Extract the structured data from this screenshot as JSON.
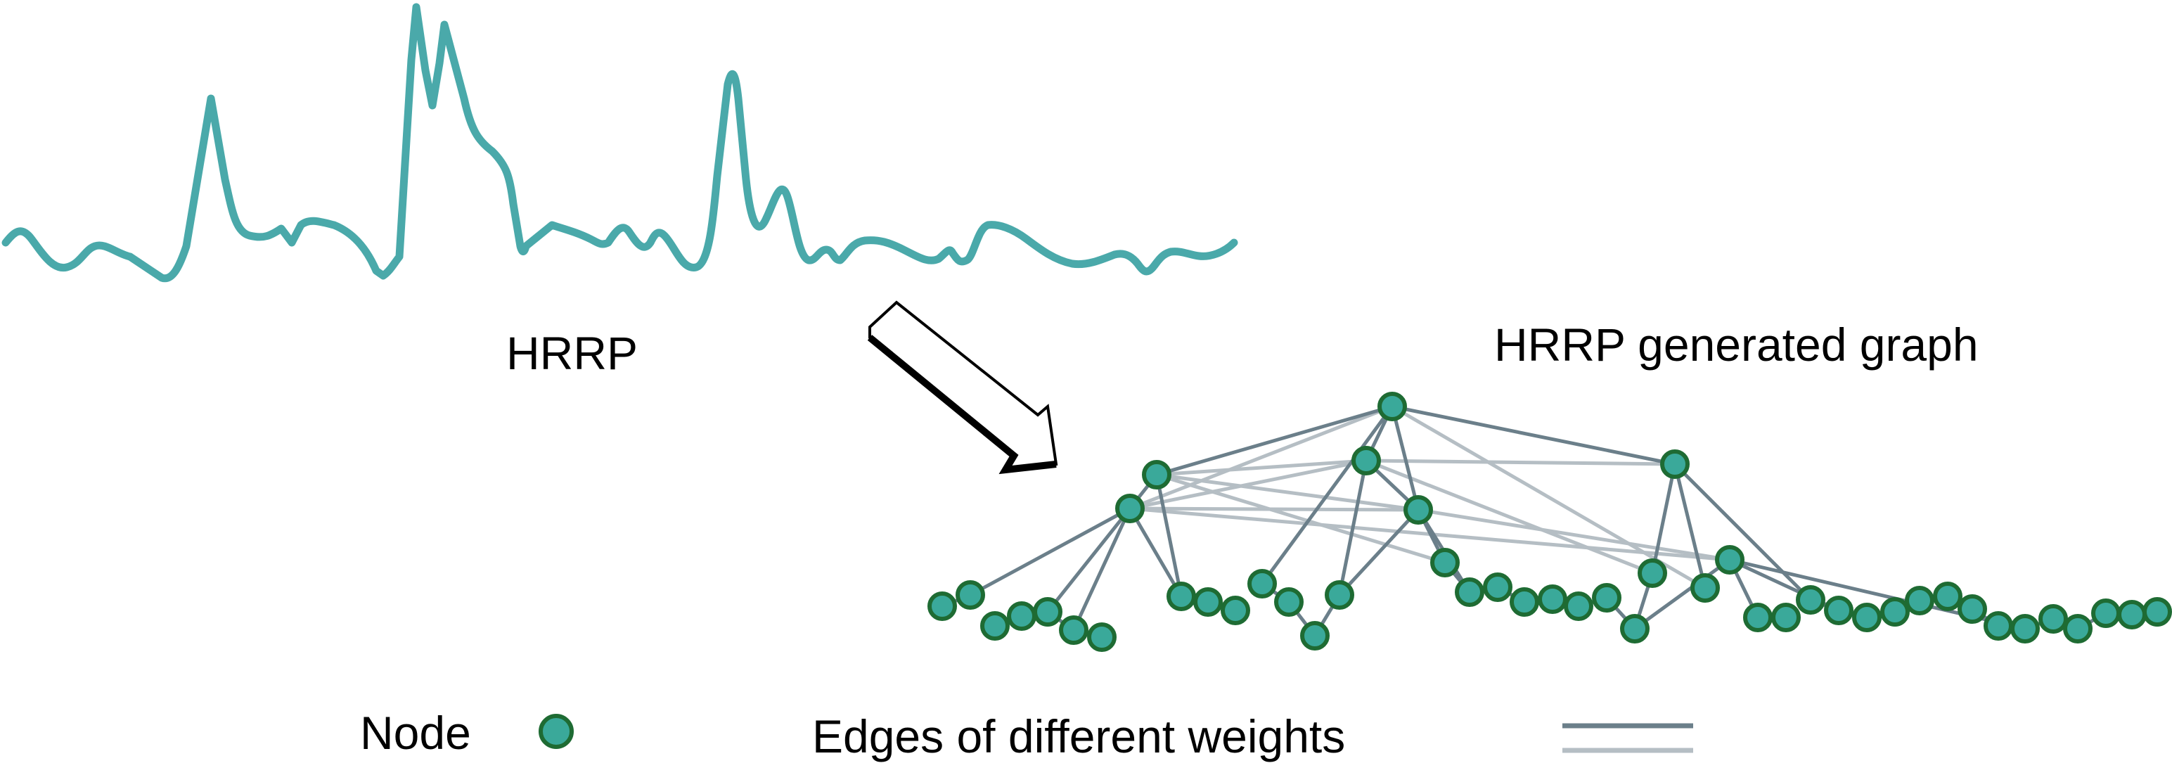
{
  "labels": {
    "hrrp": "HRRP",
    "graph_title": "HRRP generated graph",
    "node_legend": "Node",
    "edge_legend": "Edges of different weights"
  },
  "colors": {
    "signal": "#4aa9aa",
    "node_fill": "#3aa99a",
    "node_stroke": "#1e6b33",
    "edge_dark": "#6b7f8a",
    "edge_light": "#b5bec4",
    "arrow_stroke": "#000000"
  },
  "icons": {
    "arrow": "hollow-arrow-icon",
    "node": "node-circle-icon"
  }
}
